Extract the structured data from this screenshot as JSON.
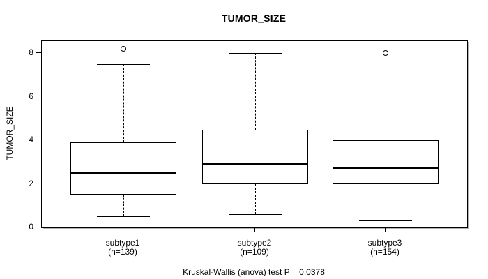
{
  "title": "TUMOR_SIZE",
  "caption": "Kruskal-Wallis (anova) test P = 0.0378",
  "colors": {
    "foreground": "#000000",
    "background": "#ffffff"
  },
  "chart_data": {
    "type": "boxplot",
    "title": "TUMOR_SIZE",
    "xlabel": "",
    "ylabel": "TUMOR_SIZE",
    "ylim": [
      0,
      8.56
    ],
    "yticks": [
      0,
      2,
      4,
      6,
      8
    ],
    "grid": false,
    "annotation": "Kruskal-Wallis (anova) test P = 0.0378",
    "groups": [
      {
        "label": "subtype1",
        "sublabel": "(n=139)",
        "n": 139,
        "whisker_low": 0.5,
        "q1": 1.5,
        "median": 2.5,
        "q3": 3.9,
        "whisker_high": 7.5,
        "outliers": [
          8.2
        ]
      },
      {
        "label": "subtype2",
        "sublabel": "(n=109)",
        "n": 109,
        "whisker_low": 0.6,
        "q1": 2.0,
        "median": 2.9,
        "q3": 4.5,
        "whisker_high": 8.0,
        "outliers": []
      },
      {
        "label": "subtype3",
        "sublabel": "(n=154)",
        "n": 154,
        "whisker_low": 0.3,
        "q1": 2.0,
        "median": 2.7,
        "q3": 4.0,
        "whisker_high": 6.6,
        "outliers": [
          8.0
        ]
      }
    ]
  }
}
